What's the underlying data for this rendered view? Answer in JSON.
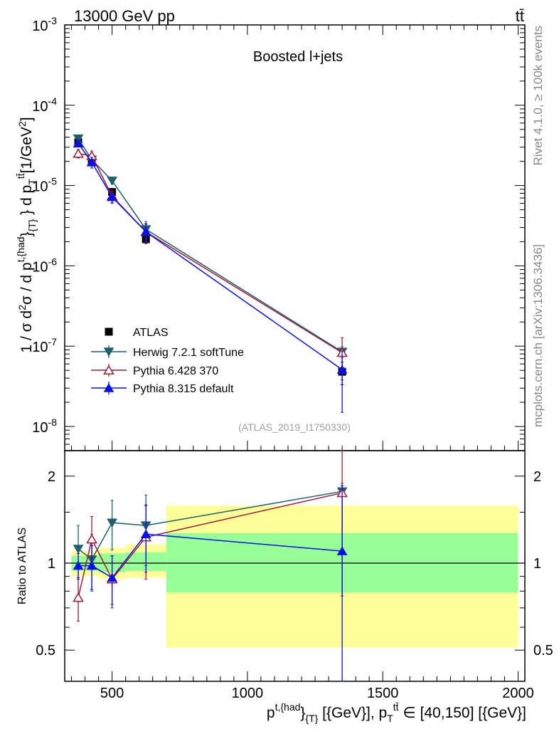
{
  "header": {
    "energy_label": "13000 GeV pp",
    "process_label": "tt̄"
  },
  "side": {
    "rivet": "Rivet 4.1.0, ≥ 100k events",
    "mcplots": "mcplots.cern.ch [arXiv:1306.3436]"
  },
  "colors": {
    "atlas": "#000000",
    "herwig": "#1f5f6a",
    "pythia6": "#9b1c35",
    "pythia8": "#0b10e6",
    "band_stat": "#98ff98",
    "band_tot": "#ffff99"
  },
  "chart_data": [
    {
      "type": "scatter",
      "title": "Boosted l+jets",
      "analysis_tag": "(ATLAS_2019_I1750330)",
      "ylabel": "1 / σ d²σ / d p_T^{t,{had}}_{T} d p_T^{tt̄} [1/GeV²]",
      "yscale": "log",
      "xlim": [
        325,
        2025
      ],
      "ylim": [
        5e-09,
        0.001
      ],
      "y_ticks": [
        {
          "value": 1e-08,
          "base": "10",
          "exp": "-8"
        },
        {
          "value": 1e-07,
          "base": "10",
          "exp": "-7"
        },
        {
          "value": 1e-06,
          "base": "10",
          "exp": "-6"
        },
        {
          "value": 1e-05,
          "base": "10",
          "exp": "-5"
        },
        {
          "value": 0.0001,
          "base": "10",
          "exp": "-4"
        },
        {
          "value": 0.001,
          "base": "10",
          "exp": "-3"
        }
      ],
      "legend": [
        "ATLAS",
        "Herwig 7.2.1 softTune",
        "Pythia 6.428 370",
        "Pythia 8.315 default"
      ],
      "series": [
        {
          "name": "ATLAS",
          "key": "atlas",
          "marker": "square",
          "x": [
            375,
            425,
            500,
            625,
            1350
          ],
          "y": [
            3.45e-05,
            2.05e-05,
            8.3e-06,
            2.15e-06,
            4.8e-08
          ],
          "err_lo": [
            3.5e-06,
            2e-06,
            9e-07,
            2.5e-07,
            1.5e-08
          ],
          "err_hi": [
            3.5e-06,
            2e-06,
            9e-07,
            2.5e-07,
            1.5e-08
          ]
        },
        {
          "name": "Herwig 7.2.1 softTune",
          "key": "herwig",
          "marker": "tri-down",
          "x": [
            375,
            425,
            500,
            625,
            1350
          ],
          "y": [
            3.85e-05,
            2.1e-05,
            1.15e-05,
            2.85e-06,
            8.5e-08
          ],
          "err_lo": [
            3.5e-06,
            2.5e-06,
            1.1e-06,
            7e-07,
            1.3e-08
          ],
          "err_hi": [
            3.5e-06,
            2.5e-06,
            1.1e-06,
            7e-07,
            1.3e-08
          ]
        },
        {
          "name": "Pythia 6.428 370",
          "key": "pythia6",
          "marker": "tri-up-open",
          "x": [
            375,
            425,
            500,
            625,
            1350
          ],
          "y": [
            2.5e-05,
            2.35e-05,
            7.4e-06,
            2.65e-06,
            8.3e-08
          ],
          "err_lo": [
            3e-06,
            3.5e-06,
            1.2e-06,
            6.5e-07,
            4.5e-08
          ],
          "err_hi": [
            3e-06,
            3.5e-06,
            1.2e-06,
            6.5e-07,
            4.5e-08
          ]
        },
        {
          "name": "Pythia 8.315 default",
          "key": "pythia8",
          "marker": "tri-up",
          "x": [
            375,
            425,
            500,
            625,
            1350
          ],
          "y": [
            3.35e-05,
            1.95e-05,
            7.2e-06,
            2.65e-06,
            5.1e-08
          ],
          "err_lo": [
            3e-06,
            3e-06,
            1.2e-06,
            7e-07,
            3.6e-08
          ],
          "err_hi": [
            3e-06,
            3e-06,
            1.2e-06,
            7e-07,
            3.6e-08
          ]
        }
      ]
    },
    {
      "type": "scatter",
      "title": "",
      "ylabel": "Ratio to ATLAS",
      "xlabel": "p_T^{t,{had}}_{T} [{GeV}], p_T^{tt̄} ∈ [40,150] [{GeV}]",
      "xlim": [
        325,
        2025
      ],
      "ylim": [
        0.39,
        2.45
      ],
      "y_ticks": [
        0.5,
        1,
        2
      ],
      "x_ticks": [
        500,
        1000,
        1500,
        2000
      ],
      "reference": 1,
      "bands": [
        {
          "x0": 350,
          "x1": 400,
          "stat": [
            0.94,
            1.06
          ],
          "tot": [
            0.9,
            1.1
          ]
        },
        {
          "x0": 400,
          "x1": 450,
          "stat": [
            0.94,
            1.06
          ],
          "tot": [
            0.9,
            1.1
          ]
        },
        {
          "x0": 450,
          "x1": 550,
          "stat": [
            0.93,
            1.08
          ],
          "tot": [
            0.88,
            1.13
          ]
        },
        {
          "x0": 550,
          "x1": 700,
          "stat": [
            0.94,
            1.09
          ],
          "tot": [
            0.89,
            1.16
          ]
        },
        {
          "x0": 700,
          "x1": 2000,
          "stat": [
            0.79,
            1.27
          ],
          "tot": [
            0.51,
            1.58
          ]
        }
      ],
      "series": [
        {
          "name": "ATLAS",
          "key": "atlas",
          "x": [
            375,
            425,
            500,
            625,
            1350
          ],
          "y": [
            1,
            1,
            1,
            1,
            1
          ]
        },
        {
          "name": "Herwig 7.2.1 softTune",
          "key": "herwig",
          "x": [
            375,
            425,
            500,
            625,
            1350
          ],
          "y": [
            1.12,
            1.03,
            1.38,
            1.35,
            1.77
          ],
          "err_lo": [
            0.23,
            0.23,
            0.27,
            0.37,
            1.0
          ],
          "err_hi": [
            0.23,
            0.23,
            0.27,
            0.37,
            0.12
          ]
        },
        {
          "name": "Pythia 6.428 370",
          "key": "pythia6",
          "x": [
            375,
            425,
            500,
            625,
            1350
          ],
          "y": [
            0.76,
            1.21,
            0.88,
            1.23,
            1.75
          ],
          "err_lo": [
            0.13,
            0.24,
            0.18,
            0.35,
            0.98
          ],
          "err_hi": [
            0.13,
            0.24,
            0.18,
            0.35,
            0.7
          ]
        },
        {
          "name": "Pythia 8.315 default",
          "key": "pythia8",
          "x": [
            375,
            425,
            500,
            625,
            1350
          ],
          "y": [
            0.98,
            0.98,
            0.89,
            1.26,
            1.1
          ],
          "err_lo": [
            0.1,
            0.17,
            0.17,
            0.33,
            0.75
          ],
          "err_hi": [
            0.1,
            0.17,
            0.17,
            0.33,
            0.75
          ]
        }
      ]
    }
  ]
}
